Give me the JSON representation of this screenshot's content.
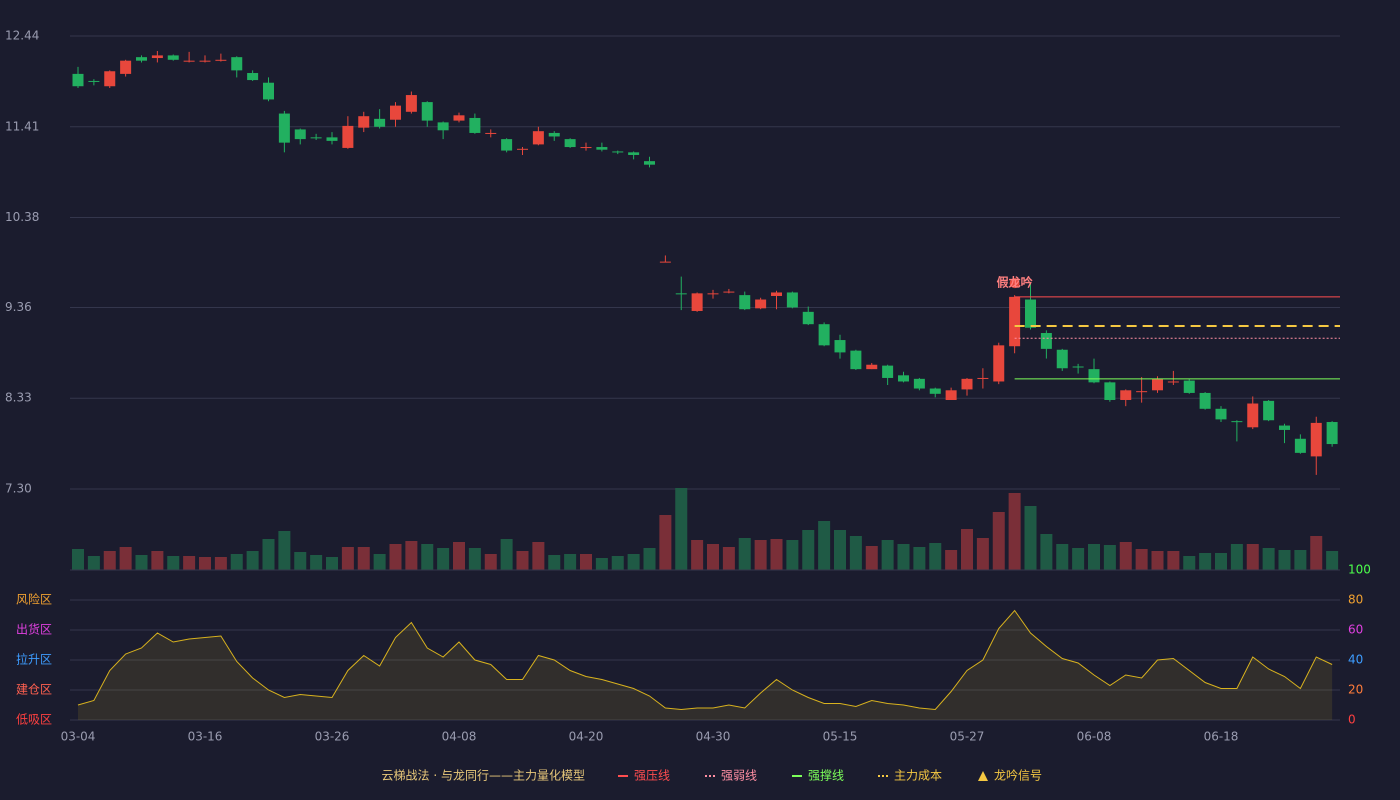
{
  "chart_data": [
    {
      "type": "candlestick",
      "categories": [
        "03-04",
        null,
        null,
        null,
        null,
        null,
        null,
        null,
        "03-16",
        null,
        null,
        null,
        null,
        null,
        null,
        null,
        "03-26",
        null,
        null,
        null,
        null,
        null,
        null,
        null,
        "04-08",
        null,
        null,
        null,
        null,
        null,
        null,
        null,
        "04-20",
        null,
        null,
        null,
        null,
        null,
        null,
        null,
        "04-30",
        null,
        null,
        null,
        null,
        null,
        null,
        null,
        "05-15",
        null,
        null,
        null,
        null,
        null,
        null,
        null,
        "05-27",
        null,
        null,
        null,
        null,
        null,
        null,
        null,
        "06-08",
        null,
        null,
        null,
        null,
        null,
        null,
        null,
        "06-18",
        null,
        null,
        null,
        null,
        null,
        null,
        null
      ],
      "open": [
        12.01,
        11.93,
        11.87,
        12.01,
        12.2,
        12.19,
        12.22,
        12.15,
        12.15,
        12.16,
        12.2,
        12.02,
        11.91,
        11.56,
        11.38,
        11.29,
        11.29,
        11.17,
        11.4,
        11.5,
        11.49,
        11.58,
        11.69,
        11.46,
        11.48,
        11.51,
        11.33,
        11.27,
        11.15,
        11.21,
        11.34,
        11.27,
        11.17,
        11.18,
        11.13,
        11.12,
        11.02,
        9.87,
        9.52,
        9.32,
        9.51,
        9.53,
        9.5,
        9.35,
        9.49,
        9.53,
        9.31,
        9.17,
        8.99,
        8.87,
        8.66,
        8.7,
        8.59,
        8.55,
        8.44,
        8.31,
        8.43,
        8.55,
        8.52,
        8.92,
        9.45,
        9.07,
        8.88,
        8.69,
        8.66,
        8.51,
        8.31,
        8.4,
        8.42,
        8.51,
        8.53,
        8.39,
        8.21,
        8.07,
        8.0,
        8.3,
        8.02,
        7.87,
        7.67,
        8.06
      ],
      "close": [
        11.87,
        11.92,
        12.04,
        12.16,
        12.16,
        12.22,
        12.17,
        12.16,
        12.16,
        12.17,
        12.05,
        11.94,
        11.72,
        11.23,
        11.27,
        11.28,
        11.25,
        11.42,
        11.53,
        11.41,
        11.65,
        11.77,
        11.48,
        11.37,
        11.54,
        11.34,
        11.34,
        11.14,
        11.16,
        11.36,
        11.3,
        11.18,
        11.18,
        11.15,
        11.12,
        11.09,
        10.98,
        9.88,
        9.51,
        9.52,
        9.52,
        9.54,
        9.34,
        9.45,
        9.53,
        9.36,
        9.17,
        8.93,
        8.85,
        8.66,
        8.71,
        8.56,
        8.52,
        8.44,
        8.38,
        8.42,
        8.55,
        8.56,
        8.93,
        9.48,
        9.13,
        8.89,
        8.67,
        8.68,
        8.51,
        8.31,
        8.42,
        8.41,
        8.55,
        8.52,
        8.39,
        8.21,
        8.09,
        8.06,
        8.27,
        8.08,
        7.97,
        7.71,
        8.05,
        7.81
      ],
      "high": [
        12.09,
        11.95,
        12.05,
        12.17,
        12.22,
        12.27,
        12.23,
        12.26,
        12.22,
        12.24,
        12.21,
        12.05,
        11.97,
        11.59,
        11.39,
        11.33,
        11.35,
        11.53,
        11.58,
        11.61,
        11.69,
        11.81,
        11.7,
        11.47,
        11.57,
        11.56,
        11.38,
        11.28,
        11.18,
        11.41,
        11.36,
        11.28,
        11.23,
        11.23,
        11.14,
        11.13,
        11.07,
        9.95,
        9.71,
        9.53,
        9.56,
        9.57,
        9.54,
        9.47,
        9.55,
        9.54,
        9.37,
        9.19,
        9.05,
        8.88,
        8.73,
        8.71,
        8.63,
        8.56,
        8.45,
        8.45,
        8.56,
        8.67,
        8.96,
        9.5,
        9.64,
        9.1,
        8.89,
        8.72,
        8.78,
        8.52,
        8.43,
        8.57,
        8.58,
        8.64,
        8.55,
        8.4,
        8.24,
        8.08,
        8.35,
        8.31,
        8.04,
        7.92,
        8.12,
        8.07
      ],
      "low": [
        11.85,
        11.88,
        11.85,
        11.98,
        12.14,
        12.14,
        12.16,
        12.14,
        12.14,
        12.15,
        11.97,
        11.93,
        11.7,
        11.12,
        11.21,
        11.26,
        11.21,
        11.16,
        11.35,
        11.39,
        11.41,
        11.56,
        11.41,
        11.27,
        11.46,
        11.33,
        11.29,
        11.12,
        11.09,
        11.2,
        11.25,
        11.17,
        11.14,
        11.13,
        11.1,
        11.04,
        10.95,
        9.87,
        9.33,
        9.31,
        9.46,
        9.52,
        9.33,
        9.34,
        9.34,
        9.35,
        9.16,
        8.92,
        8.78,
        8.65,
        8.66,
        8.48,
        8.51,
        8.42,
        8.34,
        8.31,
        8.36,
        8.44,
        8.49,
        8.84,
        9.11,
        8.78,
        8.64,
        8.61,
        8.5,
        8.29,
        8.24,
        8.28,
        8.39,
        8.48,
        8.38,
        8.2,
        8.06,
        7.84,
        7.98,
        8.07,
        7.82,
        7.7,
        7.46,
        7.78
      ],
      "up_color": "#e8473c",
      "down_color": "#22b060",
      "ylim": [
        7.3,
        12.44
      ],
      "yticks": [
        12.44,
        11.41,
        10.38,
        9.36,
        8.33,
        {
          "value": 7.3,
          "label": "7.30"
        }
      ],
      "grid": true,
      "levels": [
        {
          "name": "强压线",
          "value": 9.48,
          "color": "#ff4d4f",
          "style": "solid",
          "from": 59
        },
        {
          "name": "强弱线",
          "value": 9.01,
          "color": "#ff8fa3",
          "style": "dotted",
          "from": 59
        },
        {
          "name": "强撑线",
          "value": 8.55,
          "color": "#7cff5a",
          "style": "solid",
          "from": 59
        },
        {
          "name": "主力成本",
          "value": 9.15,
          "color": "#f5c842",
          "style": "dashed",
          "from": 59
        }
      ],
      "annotation": {
        "text": "假龙吟",
        "at": 59,
        "color": "#ff8080"
      },
      "signal": {
        "name": "龙吟信号",
        "color": "#f5c842"
      },
      "legend_title": "云梯战法 · 与龙同行——主力量化模型"
    },
    {
      "type": "bar",
      "values": [
        21,
        14,
        19,
        23,
        15,
        19,
        14,
        14,
        13,
        13,
        16,
        19,
        31,
        39,
        18,
        15,
        13,
        23,
        23,
        16,
        26,
        29,
        26,
        22,
        28,
        22,
        16,
        31,
        19,
        28,
        15,
        16,
        16,
        12,
        14,
        16,
        22,
        55,
        82,
        30,
        26,
        23,
        32,
        30,
        31,
        30,
        40,
        49,
        40,
        34,
        24,
        30,
        26,
        23,
        27,
        20,
        41,
        32,
        58,
        77,
        64,
        36,
        26,
        22,
        26,
        25,
        28,
        21,
        19,
        19,
        14,
        17,
        17,
        26,
        26,
        22,
        20,
        20,
        34,
        19
      ],
      "up_color": "#7a2f38",
      "down_color": "#1f5a45"
    },
    {
      "type": "line",
      "values": [
        10,
        13,
        33,
        44,
        48,
        58,
        52,
        54,
        55,
        56,
        39,
        28,
        20,
        15,
        17,
        16,
        15,
        33,
        43,
        36,
        55,
        65,
        48,
        42,
        52,
        40,
        37,
        27,
        27,
        43,
        40,
        33,
        29,
        27,
        24,
        21,
        16,
        8,
        7,
        8,
        8,
        10,
        8,
        18,
        27,
        20,
        15,
        11,
        11,
        9,
        13,
        11,
        10,
        8,
        7,
        19,
        33,
        40,
        61,
        73,
        58,
        49,
        41,
        38,
        30,
        23,
        30,
        28,
        40,
        41,
        33,
        25,
        21,
        21,
        42,
        34,
        29,
        21,
        42,
        37
      ],
      "color": "#d8b21e",
      "ylim": [
        0,
        100
      ],
      "yticks": [
        0,
        20,
        40,
        60,
        80,
        100
      ],
      "tick_colors": [
        "#ff4040",
        "#ff7b3a",
        "#3d9cff",
        "#e040e0",
        "#f0a030",
        "#4cff4c"
      ],
      "zones": [
        {
          "label": "风险区",
          "value": 80,
          "color": "#f0a030"
        },
        {
          "label": "出货区",
          "value": 60,
          "color": "#e040e0"
        },
        {
          "label": "拉升区",
          "value": 40,
          "color": "#3d9cff"
        },
        {
          "label": "建仓区",
          "value": 20,
          "color": "#ff6050"
        },
        {
          "label": "低吸区",
          "value": 0,
          "color": "#ff4040"
        }
      ],
      "grid": true
    }
  ]
}
